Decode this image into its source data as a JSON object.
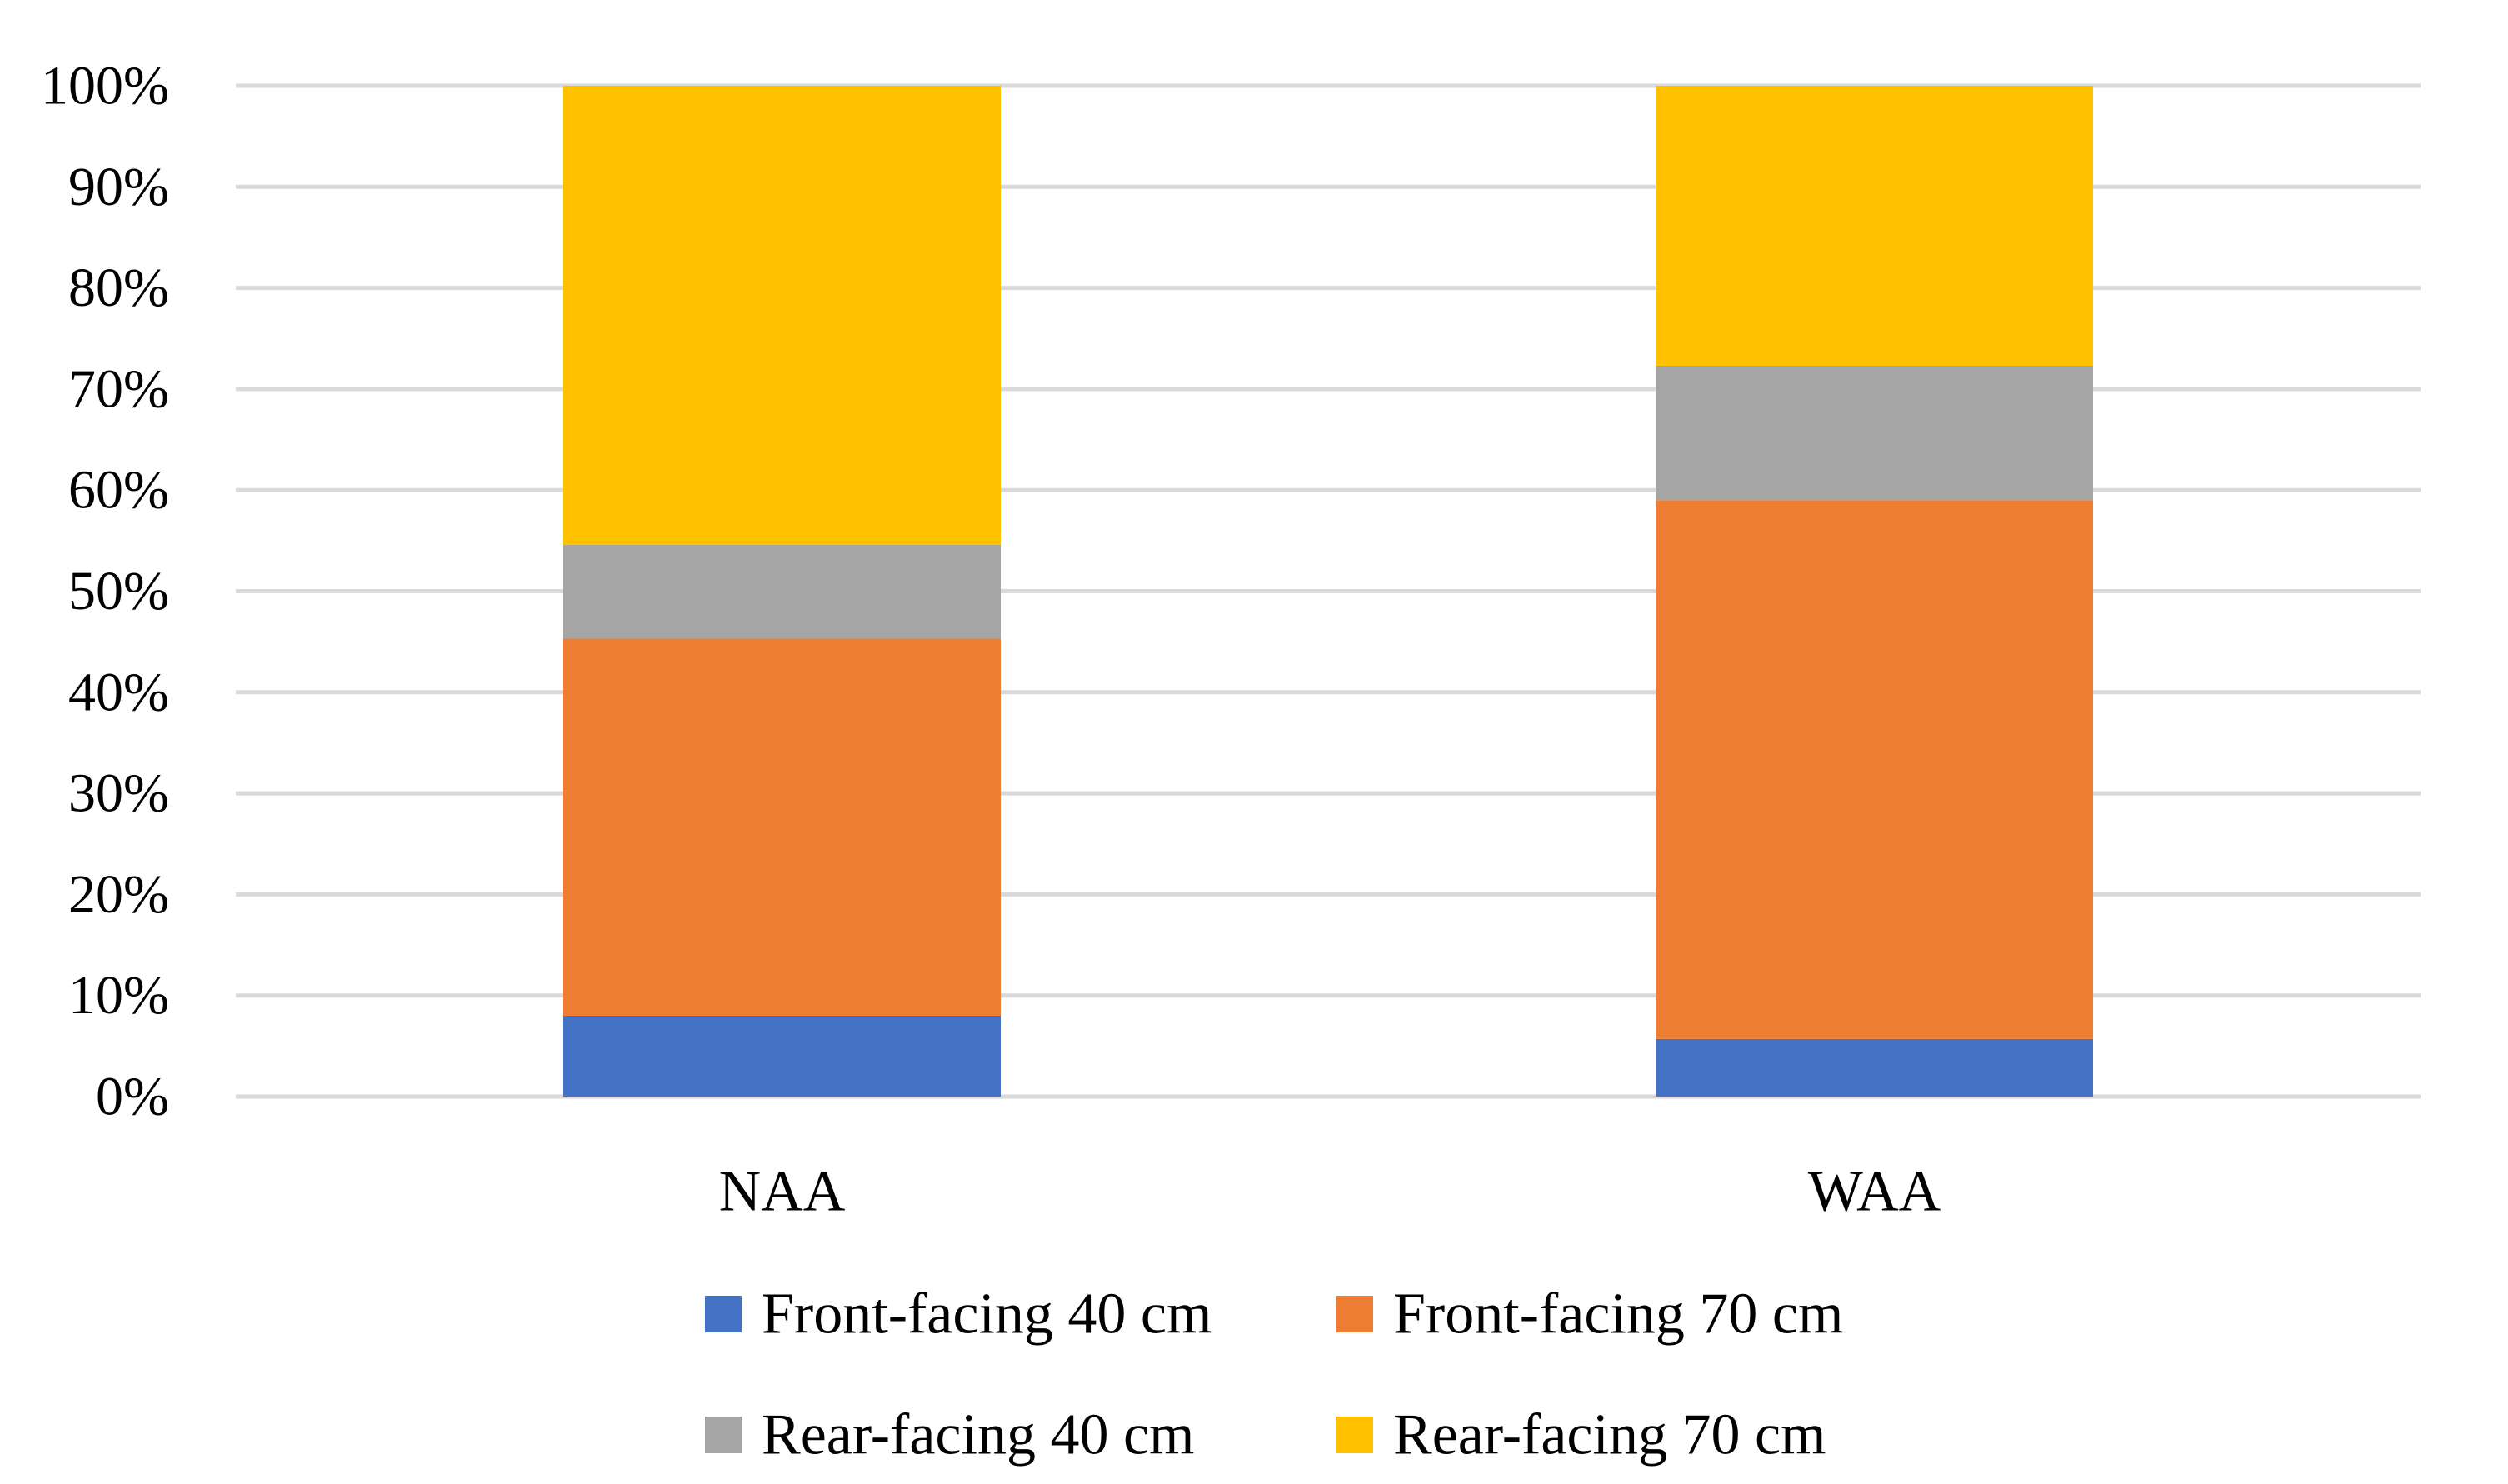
{
  "chart_data": {
    "type": "bar",
    "stacked": true,
    "percent_stacked": true,
    "categories": [
      "NAA",
      "WAA"
    ],
    "series": [
      {
        "name": "Front-facing 40 cm",
        "color": "#4472C4",
        "values": [
          8,
          5.7
        ]
      },
      {
        "name": "Front-facing 70 cm",
        "color": "#ED7D31",
        "values": [
          37.3,
          53.3
        ]
      },
      {
        "name": "Rear-facing 40 cm",
        "color": "#A5A5A5",
        "values": [
          9.3,
          13.3
        ]
      },
      {
        "name": "Rear-facing 70 cm",
        "color": "#FFC000",
        "values": [
          45.4,
          27.7
        ]
      }
    ],
    "ylim": [
      0,
      100
    ],
    "yticks": [
      "0%",
      "10%",
      "20%",
      "30%",
      "40%",
      "50%",
      "60%",
      "70%",
      "80%",
      "90%",
      "100%"
    ],
    "grid": true,
    "legend": "bottom",
    "title": "",
    "xlabel": "",
    "ylabel": ""
  }
}
